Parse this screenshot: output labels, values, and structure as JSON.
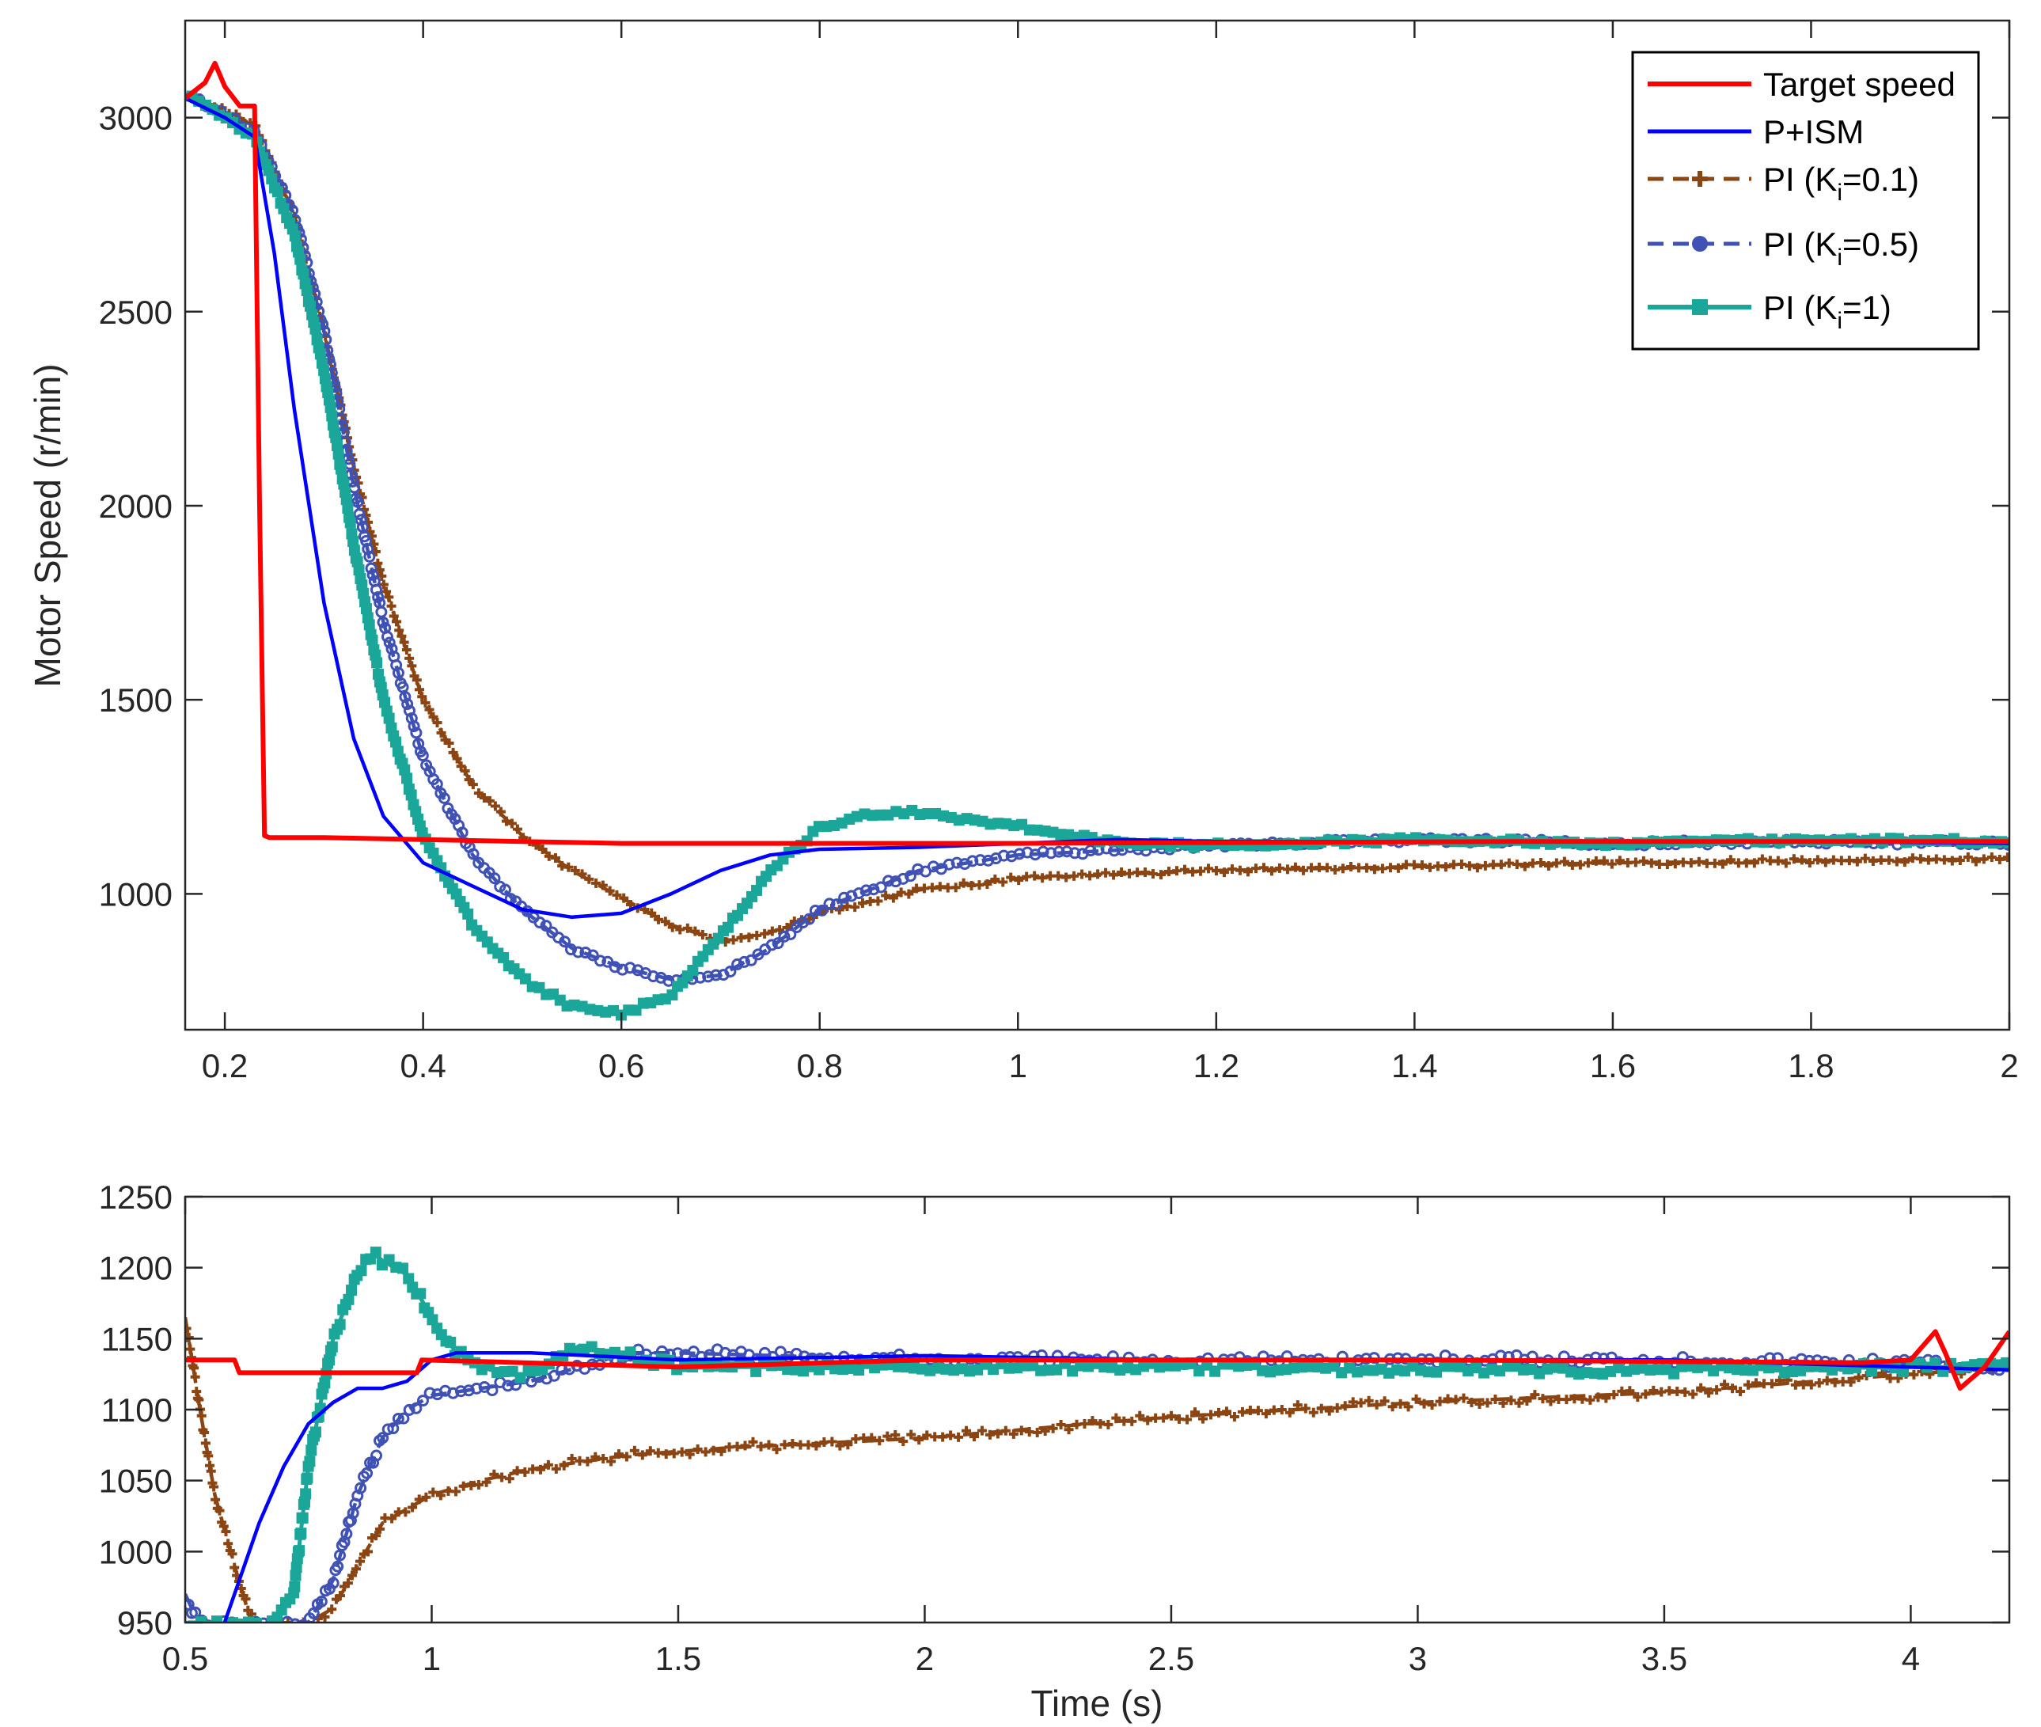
{
  "chart_data": [
    {
      "type": "line",
      "title": "",
      "xlabel": "",
      "ylabel": "Motor Speed (r/min)",
      "xlim": [
        0.16,
        2.0
      ],
      "ylim": [
        650,
        3250
      ],
      "xticks": [
        0.2,
        0.4,
        0.6,
        0.8,
        1,
        1.2,
        1.4,
        1.6,
        1.8,
        2
      ],
      "xtick_labels": [
        "0.2",
        "0.4",
        "0.6",
        "0.8",
        "1",
        "1.2",
        "1.4",
        "1.6",
        "1.8",
        "2"
      ],
      "yticks": [
        1000,
        1500,
        2000,
        2500,
        3000
      ],
      "ytick_labels": [
        "1000",
        "1500",
        "2000",
        "2500",
        "3000"
      ],
      "grid": false,
      "legend": {
        "location": "top-right",
        "entries": [
          {
            "text": "Target speed",
            "prefix": "",
            "sub": "",
            "suffix": ""
          },
          {
            "text": "P+ISM",
            "prefix": "",
            "sub": "",
            "suffix": ""
          },
          {
            "text": "",
            "prefix": "PI (K",
            "sub": "i",
            "suffix": "=0.1)"
          },
          {
            "text": "",
            "prefix": "PI (K",
            "sub": "i",
            "suffix": "=0.5)"
          },
          {
            "text": "",
            "prefix": "PI (K",
            "sub": "i",
            "suffix": "=1)"
          }
        ]
      },
      "series": [
        {
          "key": "target",
          "name": "Target speed",
          "color": "#ff0000",
          "style": "solid",
          "marker": "none",
          "x": [
            0.16,
            0.18,
            0.19,
            0.2,
            0.215,
            0.23,
            0.235,
            0.24,
            0.245,
            0.3,
            0.5,
            0.6,
            1.0,
            1.5,
            2.0
          ],
          "y": [
            3050,
            3090,
            3140,
            3080,
            3030,
            3030,
            2000,
            1150,
            1145,
            1145,
            1135,
            1130,
            1130,
            1135,
            1135
          ]
        },
        {
          "key": "pism",
          "name": "P+ISM",
          "color": "#0000ff",
          "style": "solid",
          "marker": "none",
          "x": [
            0.16,
            0.2,
            0.23,
            0.25,
            0.27,
            0.3,
            0.33,
            0.36,
            0.4,
            0.45,
            0.5,
            0.55,
            0.6,
            0.65,
            0.7,
            0.75,
            0.8,
            0.9,
            1.0,
            1.1,
            1.2,
            1.4,
            1.6,
            1.8,
            2.0
          ],
          "y": [
            3050,
            3000,
            2950,
            2650,
            2250,
            1750,
            1400,
            1200,
            1080,
            1020,
            960,
            940,
            950,
            1000,
            1060,
            1100,
            1115,
            1120,
            1130,
            1140,
            1135,
            1135,
            1135,
            1135,
            1130
          ]
        },
        {
          "key": "pi01",
          "name": "PI (Ki=0.1)",
          "color": "#8b4513",
          "style": "dashed",
          "marker": "plus",
          "x": [
            0.16,
            0.2,
            0.23,
            0.27,
            0.3,
            0.33,
            0.36,
            0.4,
            0.45,
            0.5,
            0.55,
            0.6,
            0.65,
            0.7,
            0.75,
            0.8,
            0.9,
            1.0,
            1.2,
            1.4,
            1.6,
            1.8,
            2.0
          ],
          "y": [
            3060,
            3020,
            2980,
            2750,
            2450,
            2100,
            1800,
            1500,
            1280,
            1150,
            1060,
            990,
            920,
            880,
            900,
            950,
            1010,
            1040,
            1060,
            1070,
            1080,
            1085,
            1090
          ]
        },
        {
          "key": "pi05",
          "name": "PI (Ki=0.5)",
          "color": "#3f51b5",
          "style": "dashed",
          "marker": "circle",
          "x": [
            0.16,
            0.2,
            0.23,
            0.27,
            0.3,
            0.33,
            0.36,
            0.4,
            0.45,
            0.5,
            0.55,
            0.6,
            0.65,
            0.7,
            0.75,
            0.8,
            0.9,
            1.0,
            1.2,
            1.4,
            1.6,
            1.8,
            2.0
          ],
          "y": [
            3060,
            3010,
            2960,
            2750,
            2450,
            2050,
            1700,
            1350,
            1100,
            960,
            860,
            810,
            780,
            790,
            860,
            960,
            1060,
            1100,
            1125,
            1140,
            1130,
            1135,
            1130
          ]
        },
        {
          "key": "pi1",
          "name": "PI (Ki=1)",
          "color": "#1aa79a",
          "style": "solid",
          "marker": "square",
          "x": [
            0.16,
            0.2,
            0.23,
            0.27,
            0.3,
            0.33,
            0.36,
            0.4,
            0.45,
            0.5,
            0.55,
            0.6,
            0.65,
            0.7,
            0.75,
            0.8,
            0.85,
            0.9,
            1.0,
            1.1,
            1.2,
            1.4,
            1.6,
            1.8,
            2.0
          ],
          "y": [
            3060,
            3000,
            2950,
            2700,
            2350,
            1900,
            1500,
            1150,
            920,
            780,
            710,
            690,
            740,
            890,
            1060,
            1170,
            1205,
            1210,
            1175,
            1130,
            1125,
            1140,
            1130,
            1140,
            1135
          ]
        }
      ]
    },
    {
      "type": "line",
      "title": "",
      "xlabel": "Time (s)",
      "ylabel": "",
      "xlim": [
        0.5,
        4.2
      ],
      "ylim": [
        950,
        1250
      ],
      "xticks": [
        0.5,
        1,
        1.5,
        2,
        2.5,
        3,
        3.5,
        4
      ],
      "xtick_labels": [
        "0.5",
        "1",
        "1.5",
        "2",
        "2.5",
        "3",
        "3.5",
        "4"
      ],
      "yticks": [
        950,
        1000,
        1050,
        1100,
        1150,
        1200,
        1250
      ],
      "ytick_labels": [
        "950",
        "1000",
        "1050",
        "1100",
        "1150",
        "1200",
        "1250"
      ],
      "grid": false,
      "series": [
        {
          "key": "target",
          "name": "Target speed",
          "color": "#ff0000",
          "style": "solid",
          "marker": "none",
          "x": [
            0.5,
            0.6,
            0.61,
            0.97,
            0.98,
            1.5,
            2.0,
            3.0,
            3.9,
            4.0,
            4.05,
            4.07,
            4.1,
            4.15,
            4.2
          ],
          "y": [
            1135,
            1135,
            1126,
            1126,
            1135,
            1130,
            1135,
            1135,
            1133,
            1135,
            1155,
            1140,
            1115,
            1130,
            1155
          ]
        },
        {
          "key": "pism",
          "name": "P+ISM",
          "color": "#0000ff",
          "style": "solid",
          "marker": "none",
          "x": [
            0.5,
            0.55,
            0.58,
            0.6,
            0.65,
            0.7,
            0.75,
            0.8,
            0.85,
            0.9,
            0.95,
            1.0,
            1.05,
            1.1,
            1.2,
            1.5,
            2.0,
            2.5,
            3.0,
            3.5,
            4.0,
            4.2
          ],
          "y": [
            950,
            945,
            950,
            970,
            1020,
            1060,
            1090,
            1105,
            1115,
            1115,
            1120,
            1135,
            1140,
            1140,
            1140,
            1135,
            1138,
            1135,
            1135,
            1135,
            1130,
            1128
          ]
        },
        {
          "key": "pi01",
          "name": "PI (Ki=0.1)",
          "color": "#8b4513",
          "style": "dashed",
          "marker": "plus",
          "x": [
            0.5,
            0.53,
            0.56,
            0.6,
            0.63,
            0.65,
            0.7,
            0.75,
            0.8,
            0.85,
            0.9,
            1.0,
            1.1,
            1.2,
            1.4,
            1.6,
            2.0,
            2.5,
            3.0,
            3.5,
            4.0,
            4.2
          ],
          "y": [
            1165,
            1100,
            1040,
            990,
            955,
            948,
            948,
            950,
            960,
            990,
            1020,
            1040,
            1050,
            1058,
            1068,
            1073,
            1080,
            1095,
            1105,
            1112,
            1125,
            1130
          ]
        },
        {
          "key": "pi05",
          "name": "PI (Ki=0.5)",
          "color": "#3f51b5",
          "style": "dashed",
          "marker": "circle",
          "x": [
            0.5,
            0.52,
            0.55,
            0.65,
            0.75,
            0.8,
            0.85,
            0.9,
            0.95,
            1.0,
            1.1,
            1.2,
            1.4,
            1.5,
            2.0,
            2.5,
            3.0,
            3.5,
            4.0,
            4.2
          ],
          "y": [
            970,
            955,
            948,
            948,
            950,
            980,
            1040,
            1080,
            1100,
            1110,
            1115,
            1120,
            1140,
            1140,
            1135,
            1135,
            1135,
            1135,
            1133,
            1130
          ]
        },
        {
          "key": "pi1",
          "name": "PI (Ki=1)",
          "color": "#1aa79a",
          "style": "solid",
          "marker": "square",
          "x": [
            0.5,
            0.6,
            0.68,
            0.72,
            0.75,
            0.8,
            0.85,
            0.88,
            0.9,
            0.95,
            1.0,
            1.05,
            1.1,
            1.15,
            1.2,
            1.3,
            1.5,
            2.0,
            2.5,
            3.0,
            3.5,
            4.0,
            4.2
          ],
          "y": [
            948,
            948,
            948,
            970,
            1060,
            1150,
            1195,
            1210,
            1205,
            1195,
            1165,
            1140,
            1130,
            1125,
            1125,
            1145,
            1130,
            1130,
            1130,
            1128,
            1128,
            1130,
            1130
          ]
        }
      ]
    }
  ]
}
